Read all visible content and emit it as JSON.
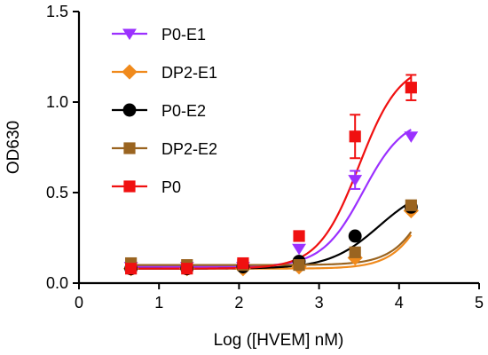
{
  "chart_data": {
    "type": "scatter",
    "xlabel": "Log ([HVEM] nM)",
    "ylabel": "OD630",
    "xlim": [
      0,
      5
    ],
    "ylim": [
      0,
      1.5
    ],
    "xticks": [
      0,
      1,
      2,
      3,
      4,
      5
    ],
    "yticks": [
      0.0,
      0.5,
      1.0,
      1.5
    ],
    "ytick_labels": [
      "0.0",
      "0.5",
      "1.0",
      "1.5"
    ],
    "legend_position": "top-left",
    "fit_curves": true,
    "series": [
      {
        "name": "P0-E1",
        "color": "#9b30ff",
        "marker": "triangle-down",
        "x": [
          0.65,
          1.35,
          2.05,
          2.75,
          3.45,
          4.15
        ],
        "y": [
          0.09,
          0.09,
          0.09,
          0.19,
          0.57,
          0.81
        ],
        "err": [
          0.01,
          0.01,
          0.01,
          0.01,
          0.05,
          0.01
        ],
        "fit": {
          "bottom": 0.09,
          "top": 0.92,
          "logEC50": 3.55,
          "hill": 1.7
        }
      },
      {
        "name": "DP2-E1",
        "color": "#f08a1c",
        "marker": "diamond",
        "x": [
          0.65,
          1.35,
          2.05,
          2.75,
          3.45,
          4.15
        ],
        "y": [
          0.08,
          0.08,
          0.08,
          0.09,
          0.14,
          0.4
        ],
        "err": [
          0.01,
          0.01,
          0.01,
          0.01,
          0.01,
          0.01
        ],
        "fit": {
          "bottom": 0.08,
          "top": 1.2,
          "logEC50": 4.55,
          "hill": 1.75
        }
      },
      {
        "name": "P0-E2",
        "color": "#000000",
        "marker": "circle",
        "x": [
          0.65,
          1.35,
          2.05,
          2.75,
          3.45,
          4.15
        ],
        "y": [
          0.08,
          0.08,
          0.09,
          0.12,
          0.26,
          0.42
        ],
        "err": [
          0.01,
          0.01,
          0.01,
          0.01,
          0.01,
          0.01
        ],
        "fit": {
          "bottom": 0.08,
          "top": 0.55,
          "logEC50": 3.75,
          "hill": 1.4
        }
      },
      {
        "name": "DP2-E2",
        "color": "#9a6420",
        "marker": "square",
        "x": [
          0.65,
          1.35,
          2.05,
          2.75,
          3.45,
          4.15
        ],
        "y": [
          0.11,
          0.1,
          0.1,
          0.1,
          0.17,
          0.43
        ],
        "err": [
          0.01,
          0.01,
          0.01,
          0.01,
          0.01,
          0.01
        ],
        "fit": {
          "bottom": 0.1,
          "top": 1.2,
          "logEC50": 4.55,
          "hill": 1.75
        }
      },
      {
        "name": "P0",
        "color": "#f01010",
        "marker": "square",
        "x": [
          0.65,
          1.35,
          2.05,
          2.75,
          3.45,
          4.15
        ],
        "y": [
          0.08,
          0.08,
          0.11,
          0.26,
          0.81,
          1.08
        ],
        "err": [
          0.01,
          0.01,
          0.01,
          0.01,
          0.12,
          0.07
        ],
        "fit": {
          "bottom": 0.08,
          "top": 1.22,
          "logEC50": 3.5,
          "hill": 1.7
        }
      }
    ]
  }
}
